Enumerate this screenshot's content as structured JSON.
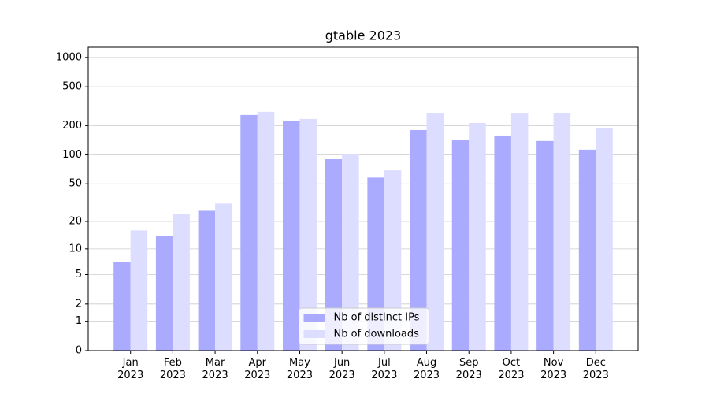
{
  "chart_data": {
    "type": "bar",
    "title": "gtable 2023",
    "scale": "log1p",
    "categories": [
      "Jan\n2023",
      "Feb\n2023",
      "Mar\n2023",
      "Apr\n2023",
      "May\n2023",
      "Jun\n2023",
      "Jul\n2023",
      "Aug\n2023",
      "Sep\n2023",
      "Oct\n2023",
      "Nov\n2023",
      "Dec\n2023"
    ],
    "series": [
      {
        "name": "Nb of distinct IPs",
        "color": "#aaaaff",
        "values": [
          7,
          14,
          26,
          257,
          225,
          90,
          58,
          180,
          141,
          158,
          139,
          113
        ]
      },
      {
        "name": "Nb of downloads",
        "color": "#ddddff",
        "values": [
          16,
          24,
          31,
          277,
          234,
          101,
          69,
          266,
          213,
          266,
          271,
          190
        ]
      }
    ],
    "ylim": [
      0,
      1270
    ],
    "yticks": [
      0,
      1,
      2,
      5,
      10,
      20,
      50,
      100,
      200,
      500,
      1000
    ],
    "grid": true,
    "legend": "lower center"
  }
}
